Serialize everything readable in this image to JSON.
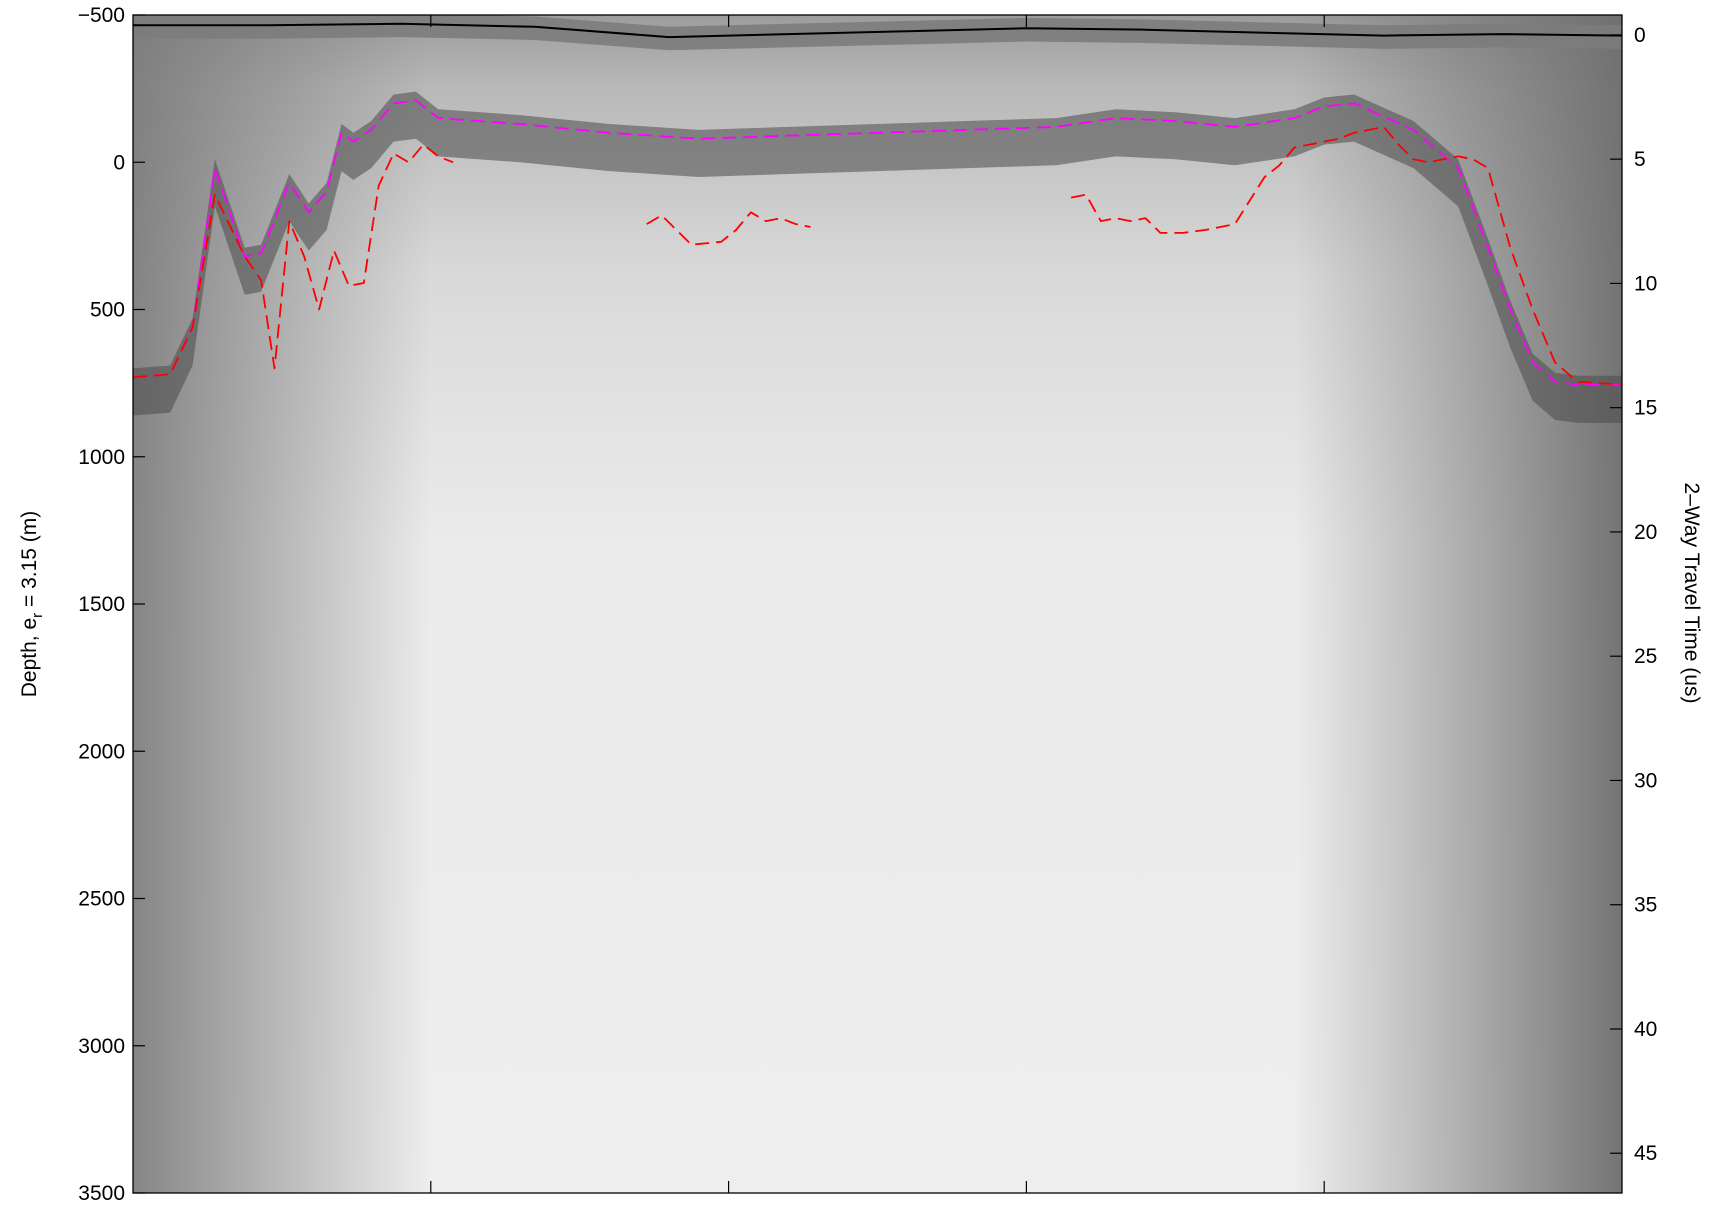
{
  "chart_data": {
    "type": "heatmap",
    "title": "",
    "xlabel": "",
    "ylabel_left": "Depth, e",
    "ylabel_left_sub": "r",
    "ylabel_left_tail": " = 3.15 (m)",
    "ylabel_right": "2–Way Travel Time (us)",
    "ylim_left": [
      -500,
      3500
    ],
    "left_ticks": [
      "−500",
      "0",
      "500",
      "1000",
      "1500",
      "2000",
      "2500",
      "3000",
      "3500"
    ],
    "left_tick_values": [
      -500,
      0,
      500,
      1000,
      1500,
      2000,
      2500,
      3000,
      3500
    ],
    "ylim_right": [
      -0.8,
      46.6
    ],
    "right_ticks": [
      "0",
      "5",
      "10",
      "15",
      "20",
      "25",
      "30",
      "35",
      "40",
      "45"
    ],
    "right_tick_values": [
      0,
      5,
      10,
      15,
      20,
      25,
      30,
      35,
      40,
      45
    ],
    "xlim": [
      0,
      100
    ],
    "x_tick_positions": [
      20,
      40,
      60,
      80
    ],
    "colormap": "gray",
    "series": [
      {
        "color": "#000000",
        "style": "solid",
        "x": [
          0,
          9,
          18,
          27,
          36,
          44,
          52,
          60,
          68,
          76,
          84,
          92,
          100
        ],
        "y": [
          -465,
          -465,
          -470,
          -460,
          -425,
          -435,
          -445,
          -455,
          -450,
          -440,
          -430,
          -435,
          -430
        ]
      },
      {
        "color": "#ff00ff",
        "style": "dashed",
        "x": [
          0,
          2.5,
          4,
          5.5,
          7.5,
          8.6,
          10.5,
          11.8,
          13,
          14,
          14.8,
          16,
          17.5,
          19,
          20.5,
          26,
          32,
          38,
          44,
          50,
          56,
          62,
          66,
          70,
          74,
          78,
          80,
          82,
          86,
          89,
          91,
          92.5,
          94,
          95.5,
          97,
          100
        ],
        "y": [
          730,
          720,
          560,
          20,
          320,
          310,
          70,
          170,
          100,
          -100,
          -70,
          -110,
          -200,
          -210,
          -150,
          -130,
          -100,
          -80,
          -90,
          -100,
          -110,
          -120,
          -150,
          -140,
          -120,
          -150,
          -190,
          -200,
          -110,
          20,
          290,
          500,
          680,
          745,
          755,
          755
        ]
      },
      {
        "color": "#ff0000",
        "style": "dashed",
        "x": [
          0,
          2.5,
          4,
          5.5,
          7.5,
          8.6,
          9.5,
          10.5,
          11.5,
          12.5,
          13.5,
          14.5,
          15.5,
          16.5,
          17.5,
          18.5,
          19.5,
          20.5,
          21.5
        ],
        "y": [
          730,
          720,
          560,
          110,
          320,
          400,
          700,
          200,
          320,
          500,
          300,
          420,
          410,
          80,
          -30,
          0,
          -60,
          -20,
          0
        ]
      },
      {
        "color": "#ff0000",
        "style": "dashed",
        "x": [
          34.5,
          35.5,
          36.5,
          37.5,
          39.5,
          40.5,
          41.5,
          42.5,
          43.5,
          44.5,
          45.5
        ],
        "y": [
          210,
          180,
          230,
          280,
          270,
          230,
          170,
          200,
          190,
          210,
          220
        ]
      },
      {
        "color": "#ff0000",
        "style": "dashed",
        "x": [
          63,
          64,
          65,
          66,
          67,
          68,
          69,
          70.5,
          72,
          74,
          76,
          77,
          78,
          79,
          80,
          81,
          82,
          83,
          84,
          85,
          86,
          87,
          88,
          89,
          90,
          91,
          92.5,
          94,
          95.5,
          97,
          100
        ],
        "y": [
          120,
          110,
          200,
          190,
          200,
          190,
          240,
          240,
          230,
          210,
          50,
          10,
          -50,
          -60,
          -70,
          -80,
          -100,
          -110,
          -120,
          -60,
          -10,
          0,
          -10,
          -20,
          -10,
          20,
          290,
          500,
          680,
          745,
          755
        ]
      }
    ]
  }
}
